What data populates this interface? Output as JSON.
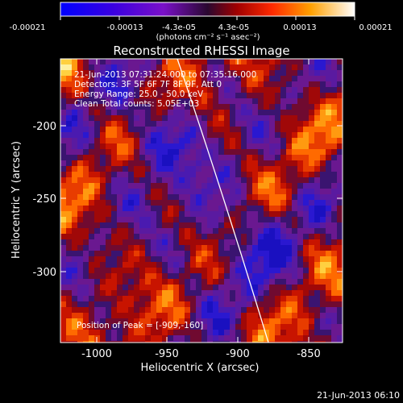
{
  "colorbar": {
    "tick_labels": [
      "-0.00021",
      "-0.00013",
      "-4.3e-05",
      "4.3e-05",
      "0.00013",
      "0.00021"
    ],
    "units_label": "(photons cm⁻² s⁻¹ asec⁻²)"
  },
  "image": {
    "title": "Reconstructed RHESSI Image",
    "xlabel": "Heliocentric X (arcsec)",
    "ylabel": "Heliocentric Y (arcsec)",
    "x_ticks": [
      "-1000",
      "-950",
      "-900",
      "-850"
    ],
    "y_ticks": [
      "-200",
      "-250",
      "-300"
    ],
    "info_lines": [
      "21-Jun-2013 07:31:24.000 to 07:35:16.000",
      "Detectors: 3F 5F 6F 7F 8F 9F, Att 0",
      "Energy Range: 25.0 - 50.0 keV",
      "Clean     Total counts: 5.05E+03"
    ],
    "peak_label": "Position of Peak = [-909,-160]"
  },
  "timestamp": "21-Jun-2013 06:10"
}
